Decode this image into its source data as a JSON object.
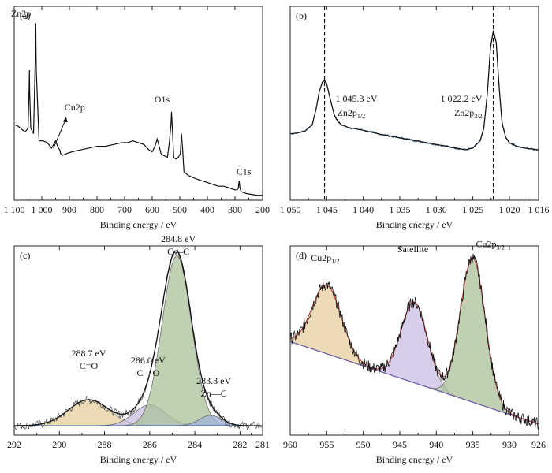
{
  "chart_data": [
    {
      "type": "line",
      "panel_label": "(a)",
      "xlabel": "Binding energy / eV",
      "ylabel": "",
      "xlim": [
        1100,
        200
      ],
      "x_reversed": true,
      "xticks": [
        1100,
        1000,
        900,
        800,
        700,
        600,
        500,
        400,
        300,
        200
      ],
      "xtick_labels": [
        "1 100",
        "1 000",
        "900",
        "800",
        "700",
        "600",
        "500",
        "400",
        "300",
        "200"
      ],
      "ylim": [
        0,
        100
      ],
      "y_scale": "intensity (a.u.)",
      "y_ticks_shown": false,
      "series": [
        {
          "color": "#111111",
          "x": [
            1100,
            1085,
            1070,
            1060,
            1050,
            1046,
            1045,
            1044,
            1040,
            1030,
            1024,
            1022,
            1020,
            1010,
            995,
            980,
            965,
            950,
            940,
            935,
            932,
            925,
            910,
            890,
            860,
            830,
            800,
            770,
            740,
            710,
            690,
            670,
            650,
            630,
            612,
            600,
            590,
            582,
            575,
            568,
            560,
            545,
            538,
            532,
            530,
            526,
            522,
            515,
            505,
            498,
            494,
            490,
            485,
            478,
            470,
            455,
            440,
            420,
            400,
            380,
            360,
            340,
            320,
            300,
            292,
            288,
            284.8,
            282,
            278,
            260,
            240,
            220,
            200
          ],
          "y": [
            40,
            39,
            37,
            36,
            38,
            60,
            70,
            58,
            38,
            35,
            74,
            96,
            70,
            31,
            31,
            30,
            27,
            31,
            27,
            26,
            24,
            23,
            24,
            25,
            26,
            27,
            28,
            28,
            29,
            30,
            30,
            31,
            30,
            29,
            26,
            25,
            28,
            32,
            28,
            24,
            23,
            22,
            30,
            40,
            47,
            35,
            22,
            21,
            22,
            24,
            35,
            27,
            14,
            13,
            12,
            11,
            10,
            9,
            8,
            7,
            6,
            6,
            5,
            4,
            4,
            5,
            9,
            5,
            3,
            2,
            1.5,
            1,
            1
          ]
        }
      ],
      "annotations": [
        {
          "label": "Zn2p",
          "x": 1022,
          "y": 96
        },
        {
          "label": "Cu2p",
          "x": 935,
          "y": 26
        },
        {
          "label": "O1s",
          "x": 531,
          "y": 47
        },
        {
          "label": "C1s",
          "x": 285,
          "y": 9
        }
      ]
    },
    {
      "type": "line",
      "panel_label": "(b)",
      "xlabel": "Binding energy / eV",
      "ylabel": "",
      "xlim": [
        1050,
        1016
      ],
      "x_reversed": true,
      "xticks": [
        1050,
        1045,
        1040,
        1035,
        1030,
        1025,
        1020,
        1016
      ],
      "xtick_labels": [
        "1 050",
        "1 045",
        "1 040",
        "1 035",
        "1 030",
        "1 025",
        "1 020",
        "1 016"
      ],
      "ylim": [
        0,
        100
      ],
      "y_ticks_shown": false,
      "series": [
        {
          "color": "#2c5a84",
          "x": [
            1050,
            1049,
            1048,
            1047,
            1046.5,
            1046,
            1045.6,
            1045.3,
            1045,
            1044.6,
            1044,
            1043.5,
            1043,
            1042,
            1040,
            1038,
            1036,
            1034,
            1032,
            1030,
            1028,
            1026,
            1025,
            1024,
            1023.5,
            1023,
            1022.6,
            1022.2,
            1021.8,
            1021.4,
            1021,
            1020.5,
            1020,
            1019,
            1018,
            1017,
            1016
          ],
          "y": [
            32,
            32.5,
            33.5,
            37,
            45,
            56,
            61,
            62,
            60,
            53,
            43,
            39,
            37,
            35.5,
            34,
            32,
            30.5,
            29,
            27.5,
            26,
            24.5,
            23,
            24,
            28,
            35,
            55,
            80,
            90,
            83,
            58,
            38,
            30,
            27,
            25,
            24,
            23.5,
            23
          ]
        }
      ],
      "reference_lines": [
        1045.3,
        1022.2
      ],
      "annotations": [
        {
          "value": "1 045.3 eV",
          "label": "Zn2p1/2",
          "main": "Zn2p",
          "sub": "1/2",
          "x": 1045.3
        },
        {
          "value": "1 022.2 eV",
          "label": "Zn2p3/2",
          "main": "Zn2p",
          "sub": "3/2",
          "x": 1022.2
        }
      ]
    },
    {
      "type": "area",
      "panel_label": "(c)",
      "xlabel": "Binding energy / eV",
      "ylabel": "",
      "xlim": [
        292,
        281
      ],
      "x_reversed": true,
      "xticks": [
        292,
        290,
        288,
        286,
        284,
        282,
        281
      ],
      "xtick_labels": [
        "292",
        "290",
        "288",
        "286",
        "284",
        "282",
        "281"
      ],
      "ylim": [
        0,
        100
      ],
      "y_ticks_shown": false,
      "baseline": 0,
      "components": [
        {
          "label": "C=O",
          "center": 288.7,
          "height": 15,
          "width": 0.9,
          "color": "#e6cf9d"
        },
        {
          "label": "C—O",
          "center": 286.0,
          "height": 12,
          "width": 0.7,
          "color": "#c8bde2"
        },
        {
          "label": "C—C",
          "center": 284.8,
          "height": 98,
          "width": 0.65,
          "color": "#a9c09a"
        },
        {
          "label": "Zn—C",
          "center": 283.3,
          "height": 6,
          "width": 0.5,
          "color": "#9fb1d6"
        }
      ],
      "annotations": [
        {
          "value": "288.7 eV",
          "label": "C=O",
          "x": 288.7
        },
        {
          "value": "286.0 eV",
          "label": "C—O",
          "x": 286.0
        },
        {
          "value": "284.8 eV",
          "label": "C—C",
          "x": 284.8
        },
        {
          "value": "283.3 eV",
          "label": "Zn—C",
          "x": 283.3
        }
      ]
    },
    {
      "type": "area",
      "panel_label": "(d)",
      "xlabel": "Binding energy / eV",
      "ylabel": "",
      "xlim": [
        960,
        926
      ],
      "x_reversed": true,
      "xticks": [
        960,
        955,
        950,
        945,
        940,
        935,
        930,
        926
      ],
      "xtick_labels": [
        "960",
        "955",
        "950",
        "945",
        "940",
        "935",
        "930",
        "926"
      ],
      "ylim": [
        0,
        100
      ],
      "y_ticks_shown": false,
      "baseline_linear": {
        "x": [
          960,
          926
        ],
        "y": [
          48,
          0
        ]
      },
      "components": [
        {
          "label": "Cu2p1/2",
          "main": "Cu2p",
          "sub": "1/2",
          "center": 955.0,
          "height": 40,
          "width": 2.0,
          "color": "#e6cf9d"
        },
        {
          "label": "Satellite",
          "main": "Satellite",
          "sub": "",
          "center": 943.0,
          "height": 47,
          "width": 1.8,
          "color": "#cbbde3"
        },
        {
          "label": "Cu2p3/2",
          "main": "Cu2p",
          "sub": "3/2",
          "center": 935.0,
          "height": 84,
          "width": 1.7,
          "color": "#a9c09a"
        }
      ]
    }
  ]
}
